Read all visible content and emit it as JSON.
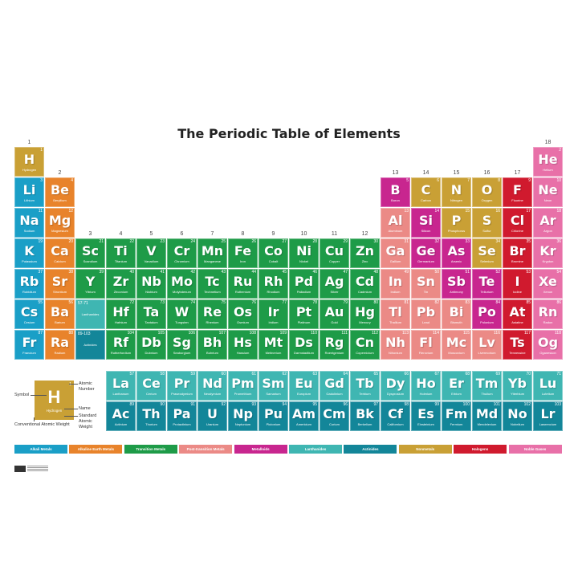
{
  "title": "The Periodic Table of Elements",
  "colors": {
    "alkali": "#1a9fc7",
    "alkaline": "#e8832b",
    "transition": "#1e9b48",
    "post": "#eb8a86",
    "metalloid": "#c8268f",
    "lanthanide": "#3fb6b2",
    "actinide": "#138699",
    "nonmetal": "#c9a035",
    "halogen": "#d01a2e",
    "noble": "#e870a8"
  },
  "group_labels": [
    "1",
    "2",
    "3",
    "4",
    "5",
    "6",
    "7",
    "8",
    "9",
    "10",
    "11",
    "12",
    "13",
    "14",
    "15",
    "16",
    "17",
    "18"
  ],
  "placeholders": [
    {
      "range": "57-71",
      "label": "Lanthanides",
      "category": "lanthanide"
    },
    {
      "range": "89-103",
      "label": "Actinides",
      "category": "actinide"
    }
  ],
  "elements": [
    [
      1,
      "H",
      "Hydrogen",
      "nonmetal"
    ],
    [
      2,
      "He",
      "Helium",
      "noble"
    ],
    [
      3,
      "Li",
      "Lithium",
      "alkali"
    ],
    [
      4,
      "Be",
      "Beryllium",
      "alkaline"
    ],
    [
      5,
      "B",
      "Boron",
      "metalloid"
    ],
    [
      6,
      "C",
      "Carbon",
      "nonmetal"
    ],
    [
      7,
      "N",
      "Nitrogen",
      "nonmetal"
    ],
    [
      8,
      "O",
      "Oxygen",
      "nonmetal"
    ],
    [
      9,
      "F",
      "Fluorine",
      "halogen"
    ],
    [
      10,
      "Ne",
      "Neon",
      "noble"
    ],
    [
      11,
      "Na",
      "Sodium",
      "alkali"
    ],
    [
      12,
      "Mg",
      "Magnesium",
      "alkaline"
    ],
    [
      13,
      "Al",
      "Aluminum",
      "post"
    ],
    [
      14,
      "Si",
      "Silicon",
      "metalloid"
    ],
    [
      15,
      "P",
      "Phosphorus",
      "nonmetal"
    ],
    [
      16,
      "S",
      "Sulfur",
      "nonmetal"
    ],
    [
      17,
      "Cl",
      "Chlorine",
      "halogen"
    ],
    [
      18,
      "Ar",
      "Argon",
      "noble"
    ],
    [
      19,
      "K",
      "Potassium",
      "alkali"
    ],
    [
      20,
      "Ca",
      "Calcium",
      "alkaline"
    ],
    [
      21,
      "Sc",
      "Scandium",
      "transition"
    ],
    [
      22,
      "Ti",
      "Titanium",
      "transition"
    ],
    [
      23,
      "V",
      "Vanadium",
      "transition"
    ],
    [
      24,
      "Cr",
      "Chromium",
      "transition"
    ],
    [
      25,
      "Mn",
      "Manganese",
      "transition"
    ],
    [
      26,
      "Fe",
      "Iron",
      "transition"
    ],
    [
      27,
      "Co",
      "Cobalt",
      "transition"
    ],
    [
      28,
      "Ni",
      "Nickel",
      "transition"
    ],
    [
      29,
      "Cu",
      "Copper",
      "transition"
    ],
    [
      30,
      "Zn",
      "Zinc",
      "transition"
    ],
    [
      31,
      "Ga",
      "Gallium",
      "post"
    ],
    [
      32,
      "Ge",
      "Germanium",
      "metalloid"
    ],
    [
      33,
      "As",
      "Arsenic",
      "metalloid"
    ],
    [
      34,
      "Se",
      "Selenium",
      "nonmetal"
    ],
    [
      35,
      "Br",
      "Bromine",
      "halogen"
    ],
    [
      36,
      "Kr",
      "Krypton",
      "noble"
    ],
    [
      37,
      "Rb",
      "Rubidium",
      "alkali"
    ],
    [
      38,
      "Sr",
      "Strontium",
      "alkaline"
    ],
    [
      39,
      "Y",
      "Yttrium",
      "transition"
    ],
    [
      40,
      "Zr",
      "Zirconium",
      "transition"
    ],
    [
      41,
      "Nb",
      "Niobium",
      "transition"
    ],
    [
      42,
      "Mo",
      "Molybdenum",
      "transition"
    ],
    [
      43,
      "Tc",
      "Technetium",
      "transition"
    ],
    [
      44,
      "Ru",
      "Ruthenium",
      "transition"
    ],
    [
      45,
      "Rh",
      "Rhodium",
      "transition"
    ],
    [
      46,
      "Pd",
      "Palladium",
      "transition"
    ],
    [
      47,
      "Ag",
      "Silver",
      "transition"
    ],
    [
      48,
      "Cd",
      "Cadmium",
      "transition"
    ],
    [
      49,
      "In",
      "Indium",
      "post"
    ],
    [
      50,
      "Sn",
      "Tin",
      "post"
    ],
    [
      51,
      "Sb",
      "Antimony",
      "metalloid"
    ],
    [
      52,
      "Te",
      "Tellurium",
      "metalloid"
    ],
    [
      53,
      "I",
      "Iodine",
      "halogen"
    ],
    [
      54,
      "Xe",
      "Xenon",
      "noble"
    ],
    [
      55,
      "Cs",
      "Cesium",
      "alkali"
    ],
    [
      56,
      "Ba",
      "Barium",
      "alkaline"
    ],
    [
      57,
      "La",
      "Lanthanum",
      "lanthanide"
    ],
    [
      58,
      "Ce",
      "Cerium",
      "lanthanide"
    ],
    [
      59,
      "Pr",
      "Praseodymium",
      "lanthanide"
    ],
    [
      60,
      "Nd",
      "Neodymium",
      "lanthanide"
    ],
    [
      61,
      "Pm",
      "Promethium",
      "lanthanide"
    ],
    [
      62,
      "Sm",
      "Samarium",
      "lanthanide"
    ],
    [
      63,
      "Eu",
      "Europium",
      "lanthanide"
    ],
    [
      64,
      "Gd",
      "Gadolinium",
      "lanthanide"
    ],
    [
      65,
      "Tb",
      "Terbium",
      "lanthanide"
    ],
    [
      66,
      "Dy",
      "Dysprosium",
      "lanthanide"
    ],
    [
      67,
      "Ho",
      "Holmium",
      "lanthanide"
    ],
    [
      68,
      "Er",
      "Erbium",
      "lanthanide"
    ],
    [
      69,
      "Tm",
      "Thulium",
      "lanthanide"
    ],
    [
      70,
      "Yb",
      "Ytterbium",
      "lanthanide"
    ],
    [
      71,
      "Lu",
      "Lutetium",
      "lanthanide"
    ],
    [
      72,
      "Hf",
      "Hafnium",
      "transition"
    ],
    [
      73,
      "Ta",
      "Tantalum",
      "transition"
    ],
    [
      74,
      "W",
      "Tungsten",
      "transition"
    ],
    [
      75,
      "Re",
      "Rhenium",
      "transition"
    ],
    [
      76,
      "Os",
      "Osmium",
      "transition"
    ],
    [
      77,
      "Ir",
      "Iridium",
      "transition"
    ],
    [
      78,
      "Pt",
      "Platinum",
      "transition"
    ],
    [
      79,
      "Au",
      "Gold",
      "transition"
    ],
    [
      80,
      "Hg",
      "Mercury",
      "transition"
    ],
    [
      81,
      "Tl",
      "Thallium",
      "post"
    ],
    [
      82,
      "Pb",
      "Lead",
      "post"
    ],
    [
      83,
      "Bi",
      "Bismuth",
      "post"
    ],
    [
      84,
      "Po",
      "Polonium",
      "metalloid"
    ],
    [
      85,
      "At",
      "Astatine",
      "halogen"
    ],
    [
      86,
      "Rn",
      "Radon",
      "noble"
    ],
    [
      87,
      "Fr",
      "Francium",
      "alkali"
    ],
    [
      88,
      "Ra",
      "Radium",
      "alkaline"
    ],
    [
      89,
      "Ac",
      "Actinium",
      "actinide"
    ],
    [
      90,
      "Th",
      "Thorium",
      "actinide"
    ],
    [
      91,
      "Pa",
      "Protactinium",
      "actinide"
    ],
    [
      92,
      "U",
      "Uranium",
      "actinide"
    ],
    [
      93,
      "Np",
      "Neptunium",
      "actinide"
    ],
    [
      94,
      "Pu",
      "Plutonium",
      "actinide"
    ],
    [
      95,
      "Am",
      "Americium",
      "actinide"
    ],
    [
      96,
      "Cm",
      "Curium",
      "actinide"
    ],
    [
      97,
      "Bk",
      "Berkelium",
      "actinide"
    ],
    [
      98,
      "Cf",
      "Californium",
      "actinide"
    ],
    [
      99,
      "Es",
      "Einsteinium",
      "actinide"
    ],
    [
      100,
      "Fm",
      "Fermium",
      "actinide"
    ],
    [
      101,
      "Md",
      "Mendelevium",
      "actinide"
    ],
    [
      102,
      "No",
      "Nobelium",
      "actinide"
    ],
    [
      103,
      "Lr",
      "Lawrencium",
      "actinide"
    ],
    [
      104,
      "Rf",
      "Rutherfordium",
      "transition"
    ],
    [
      105,
      "Db",
      "Dubnium",
      "transition"
    ],
    [
      106,
      "Sg",
      "Seaborgium",
      "transition"
    ],
    [
      107,
      "Bh",
      "Bohrium",
      "transition"
    ],
    [
      108,
      "Hs",
      "Hassium",
      "transition"
    ],
    [
      109,
      "Mt",
      "Meitnerium",
      "transition"
    ],
    [
      110,
      "Ds",
      "Darmstadtium",
      "transition"
    ],
    [
      111,
      "Rg",
      "Roentgenium",
      "transition"
    ],
    [
      112,
      "Cn",
      "Copernicium",
      "transition"
    ],
    [
      113,
      "Nh",
      "Nihonium",
      "post"
    ],
    [
      114,
      "Fl",
      "Flerovium",
      "post"
    ],
    [
      115,
      "Mc",
      "Moscovium",
      "post"
    ],
    [
      116,
      "Lv",
      "Livermorium",
      "post"
    ],
    [
      117,
      "Ts",
      "Tennessine",
      "halogen"
    ],
    [
      118,
      "Og",
      "Oganesson",
      "noble"
    ]
  ],
  "key": {
    "symbol": "H",
    "number": "1",
    "name": "Hydrogen",
    "labels": {
      "symbol": "Symbol",
      "atomic_number": "Atomic Number",
      "name": "Name",
      "standard_weight": "Standard Atomic Weight",
      "conventional_weight": "Conventional Atomic Weight"
    }
  },
  "legend": [
    {
      "label": "Alkali Metals",
      "category": "alkali"
    },
    {
      "label": "Alkaline Earth Metals",
      "category": "alkaline"
    },
    {
      "label": "Transition Metals",
      "category": "transition"
    },
    {
      "label": "Post-transition Metals",
      "category": "post"
    },
    {
      "label": "Metalloids",
      "category": "metalloid"
    },
    {
      "label": "Lanthanides",
      "category": "lanthanide"
    },
    {
      "label": "Actinides",
      "category": "actinide"
    },
    {
      "label": "Nonmetals",
      "category": "nonmetal"
    },
    {
      "label": "Halogens",
      "category": "halogen"
    },
    {
      "label": "Noble Gases",
      "category": "noble"
    }
  ]
}
